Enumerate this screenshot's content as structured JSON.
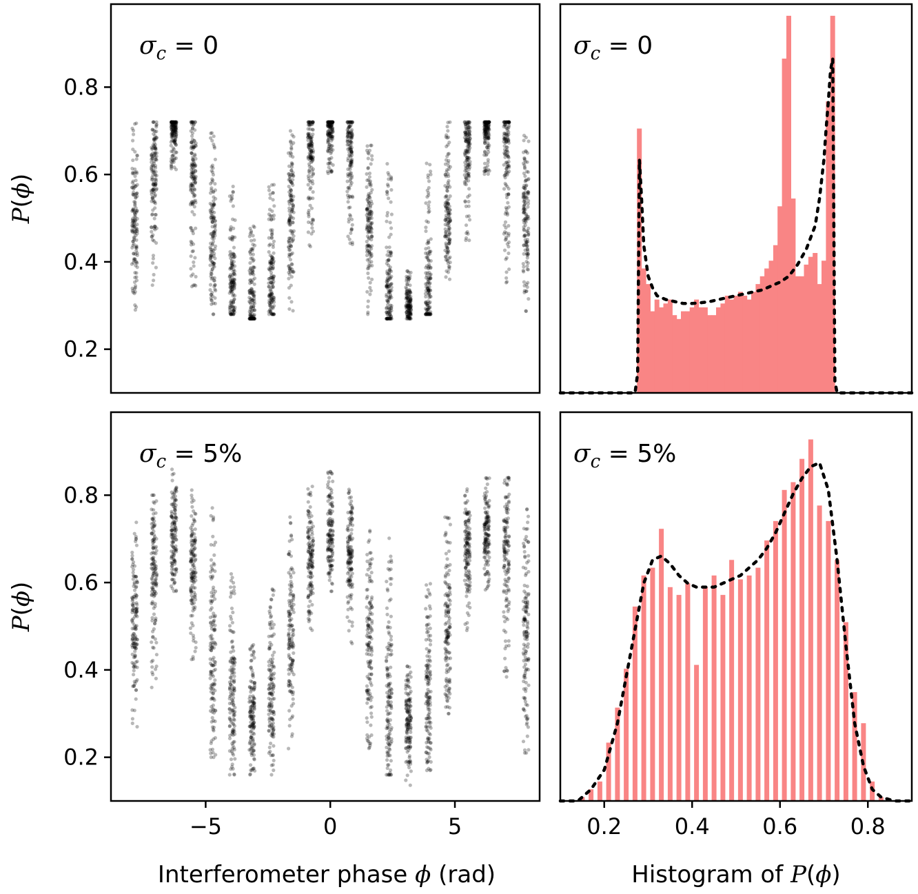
{
  "figure": {
    "xlabel_left": "Interferometer phase",
    "xlabel_left_symbol": "ϕ",
    "xlabel_left_unit": "(rad)",
    "xlabel_right_prefix": "Histogram of",
    "ylabel_symbol": "P",
    "ylabel_arg": "ϕ"
  },
  "colors": {
    "scatter": "#000000",
    "histogram": "#f98585",
    "density": "#000000"
  },
  "chart_data": [
    {
      "type": "scatter",
      "panel": "top-left",
      "label": "σc = 0",
      "label_symbol": "σ",
      "label_sub": "c",
      "label_value": "0",
      "xlabel": "",
      "ylabel": "P(ϕ)",
      "xlim": [
        -8.8,
        8.4
      ],
      "ylim": [
        0.1,
        0.99
      ],
      "yticks": [
        "0.2",
        "0.4",
        "0.6",
        "0.8"
      ],
      "ytick_values": [
        0.2,
        0.4,
        0.6,
        0.8
      ],
      "cluster_phases": [
        -7.85,
        -7.07,
        -6.28,
        -5.5,
        -4.71,
        -3.93,
        -3.14,
        -2.36,
        -1.57,
        -0.79,
        0.0,
        0.79,
        1.57,
        2.36,
        3.14,
        3.93,
        4.71,
        5.5,
        6.28,
        7.07,
        7.85
      ],
      "cluster_low": [
        0.29,
        0.34,
        0.61,
        0.34,
        0.28,
        0.28,
        0.27,
        0.28,
        0.28,
        0.43,
        0.6,
        0.44,
        0.28,
        0.27,
        0.27,
        0.28,
        0.36,
        0.44,
        0.6,
        0.35,
        0.27
      ],
      "cluster_high": [
        0.72,
        0.72,
        0.72,
        0.72,
        0.7,
        0.58,
        0.49,
        0.58,
        0.7,
        0.72,
        0.72,
        0.72,
        0.67,
        0.63,
        0.38,
        0.63,
        0.72,
        0.72,
        0.72,
        0.72,
        0.69
      ],
      "cluster_center": [
        0.5,
        0.62,
        0.71,
        0.62,
        0.45,
        0.33,
        0.29,
        0.33,
        0.5,
        0.67,
        0.71,
        0.67,
        0.48,
        0.32,
        0.29,
        0.33,
        0.5,
        0.67,
        0.71,
        0.67,
        0.5
      ]
    },
    {
      "type": "bar",
      "panel": "top-right",
      "label": "σc = 0",
      "label_symbol": "σ",
      "label_sub": "c",
      "label_value": "0",
      "xlabel": "Histogram of P(ϕ)",
      "xlim": [
        0.1,
        0.9
      ],
      "ylim": [
        0,
        1.0
      ],
      "bin_width": 0.02,
      "categories": [
        0.28,
        0.29,
        0.3,
        0.31,
        0.32,
        0.33,
        0.34,
        0.35,
        0.36,
        0.37,
        0.38,
        0.39,
        0.4,
        0.41,
        0.42,
        0.43,
        0.44,
        0.45,
        0.46,
        0.47,
        0.48,
        0.49,
        0.5,
        0.51,
        0.52,
        0.53,
        0.54,
        0.55,
        0.56,
        0.57,
        0.58,
        0.59,
        0.6,
        0.61,
        0.62,
        0.63,
        0.64,
        0.65,
        0.66,
        0.67,
        0.68,
        0.69,
        0.7,
        0.71,
        0.72
      ],
      "values": [
        0.68,
        0.32,
        0.28,
        0.21,
        0.24,
        0.22,
        0.23,
        0.24,
        0.2,
        0.19,
        0.21,
        0.21,
        0.22,
        0.24,
        0.22,
        0.22,
        0.2,
        0.2,
        0.22,
        0.23,
        0.25,
        0.24,
        0.25,
        0.26,
        0.25,
        0.24,
        0.26,
        0.28,
        0.3,
        0.32,
        0.34,
        0.38,
        0.48,
        0.86,
        0.97,
        0.5,
        0.3,
        0.3,
        0.33,
        0.35,
        0.36,
        0.28,
        0.34,
        0.75,
        0.97
      ],
      "density_x": [
        0.1,
        0.27,
        0.276,
        0.28,
        0.285,
        0.29,
        0.3,
        0.31,
        0.32,
        0.34,
        0.36,
        0.38,
        0.4,
        0.42,
        0.44,
        0.46,
        0.48,
        0.5,
        0.52,
        0.54,
        0.56,
        0.58,
        0.6,
        0.62,
        0.64,
        0.66,
        0.68,
        0.69,
        0.7,
        0.705,
        0.71,
        0.715,
        0.72,
        0.725,
        0.73,
        0.9
      ],
      "density_y": [
        0.0,
        0.0,
        0.05,
        0.6,
        0.5,
        0.38,
        0.3,
        0.27,
        0.25,
        0.24,
        0.235,
        0.23,
        0.23,
        0.232,
        0.235,
        0.24,
        0.245,
        0.25,
        0.255,
        0.26,
        0.265,
        0.275,
        0.285,
        0.3,
        0.33,
        0.37,
        0.43,
        0.5,
        0.6,
        0.68,
        0.75,
        0.83,
        0.86,
        0.03,
        0.0,
        0.0
      ]
    },
    {
      "type": "scatter",
      "panel": "bottom-left",
      "label": "σc = 5%",
      "label_symbol": "σ",
      "label_sub": "c",
      "label_value": "5%",
      "xlabel": "Interferometer phase ϕ (rad)",
      "ylabel": "P(ϕ)",
      "xlim": [
        -8.8,
        8.4
      ],
      "ylim": [
        0.1,
        0.99
      ],
      "xticks": [
        "−5",
        "0",
        "5"
      ],
      "xtick_values": [
        -5,
        0,
        5
      ],
      "yticks": [
        "0.2",
        "0.4",
        "0.6",
        "0.8"
      ],
      "ytick_values": [
        0.2,
        0.4,
        0.6,
        0.8
      ],
      "cluster_phases": [
        -7.85,
        -7.07,
        -6.28,
        -5.5,
        -4.71,
        -3.93,
        -3.14,
        -2.36,
        -1.57,
        -0.79,
        0.0,
        0.79,
        1.57,
        2.36,
        3.14,
        3.93,
        4.71,
        5.5,
        6.28,
        7.07,
        7.85
      ],
      "cluster_low": [
        0.27,
        0.35,
        0.58,
        0.42,
        0.2,
        0.16,
        0.16,
        0.16,
        0.22,
        0.49,
        0.58,
        0.46,
        0.2,
        0.16,
        0.13,
        0.17,
        0.3,
        0.49,
        0.58,
        0.38,
        0.21
      ],
      "cluster_high": [
        0.75,
        0.8,
        0.86,
        0.82,
        0.78,
        0.62,
        0.46,
        0.6,
        0.75,
        0.82,
        0.86,
        0.82,
        0.72,
        0.72,
        0.41,
        0.62,
        0.76,
        0.82,
        0.84,
        0.84,
        0.78
      ],
      "cluster_center": [
        0.5,
        0.62,
        0.71,
        0.62,
        0.45,
        0.33,
        0.29,
        0.33,
        0.5,
        0.67,
        0.71,
        0.67,
        0.48,
        0.32,
        0.29,
        0.33,
        0.5,
        0.67,
        0.71,
        0.67,
        0.5
      ]
    },
    {
      "type": "bar",
      "panel": "bottom-right",
      "label": "σc = 5%",
      "label_symbol": "σ",
      "label_sub": "c",
      "label_value": "5%",
      "xlabel": "Histogram of P(ϕ)",
      "xlim": [
        0.1,
        0.9
      ],
      "ylim": [
        0,
        1.0
      ],
      "xticks": [
        "0.2",
        "0.4",
        "0.6",
        "0.8"
      ],
      "xtick_values": [
        0.2,
        0.4,
        0.6,
        0.8
      ],
      "bin_width": 0.02,
      "categories": [
        0.13,
        0.15,
        0.17,
        0.19,
        0.21,
        0.23,
        0.25,
        0.27,
        0.29,
        0.31,
        0.33,
        0.35,
        0.37,
        0.39,
        0.41,
        0.43,
        0.45,
        0.47,
        0.49,
        0.51,
        0.53,
        0.55,
        0.57,
        0.59,
        0.61,
        0.63,
        0.65,
        0.67,
        0.69,
        0.71,
        0.73,
        0.75,
        0.77,
        0.79,
        0.81,
        0.83,
        0.85
      ],
      "values": [
        0.0,
        0.01,
        0.03,
        0.05,
        0.15,
        0.24,
        0.34,
        0.5,
        0.58,
        0.6,
        0.7,
        0.55,
        0.53,
        0.56,
        0.35,
        0.55,
        0.58,
        0.53,
        0.62,
        0.57,
        0.58,
        0.6,
        0.67,
        0.72,
        0.8,
        0.82,
        0.88,
        0.93,
        0.76,
        0.72,
        0.62,
        0.46,
        0.28,
        0.2,
        0.05,
        0.01,
        0.0
      ],
      "density_x": [
        0.1,
        0.14,
        0.17,
        0.2,
        0.23,
        0.26,
        0.29,
        0.31,
        0.33,
        0.35,
        0.37,
        0.39,
        0.41,
        0.43,
        0.45,
        0.47,
        0.49,
        0.51,
        0.53,
        0.55,
        0.57,
        0.59,
        0.61,
        0.63,
        0.65,
        0.67,
        0.69,
        0.71,
        0.73,
        0.75,
        0.77,
        0.79,
        0.81,
        0.83,
        0.86,
        0.9
      ],
      "density_y": [
        0.0,
        0.0,
        0.03,
        0.08,
        0.2,
        0.38,
        0.56,
        0.62,
        0.63,
        0.61,
        0.58,
        0.56,
        0.55,
        0.55,
        0.55,
        0.56,
        0.57,
        0.58,
        0.6,
        0.62,
        0.65,
        0.69,
        0.74,
        0.79,
        0.83,
        0.86,
        0.87,
        0.8,
        0.62,
        0.4,
        0.2,
        0.09,
        0.03,
        0.01,
        0.0,
        0.0
      ]
    }
  ]
}
